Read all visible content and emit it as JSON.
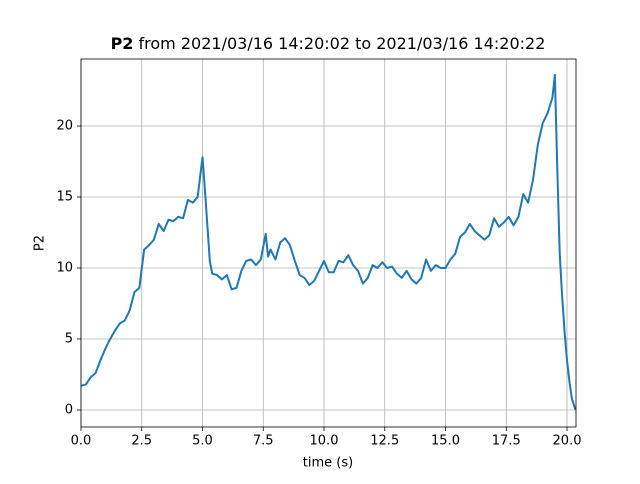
{
  "chart_data": {
    "type": "line",
    "title_parts": [
      "P2",
      "from 2021/03/16 14:20:02 to 2021/03/16 14:20:22"
    ],
    "x_label": "time (s)",
    "y_label": "P2",
    "xlim": [
      0,
      20.37
    ],
    "ylim": [
      -1.2,
      24.72
    ],
    "xticks": [
      {
        "value": 0,
        "label": "0.0"
      },
      2.5,
      {
        "value": 5,
        "label": "5.0"
      },
      7.5,
      {
        "value": 10,
        "label": "10.0"
      },
      12.5,
      {
        "value": 15,
        "label": "15.0"
      },
      17.5,
      {
        "value": 20,
        "label": "20.0"
      }
    ],
    "yticks": [
      0,
      5,
      10,
      15,
      20
    ],
    "grid": true,
    "x": [
      0,
      0.2,
      0.4,
      0.6,
      0.8,
      1.0,
      1.2,
      1.4,
      1.6,
      1.8,
      2.0,
      2.2,
      2.4,
      2.6,
      2.8,
      3.0,
      3.2,
      3.4,
      3.6,
      3.8,
      4.0,
      4.2,
      4.4,
      4.6,
      4.8,
      5.0,
      5.1,
      5.2,
      5.3,
      5.4,
      5.6,
      5.8,
      6.0,
      6.2,
      6.4,
      6.6,
      6.8,
      7.0,
      7.2,
      7.4,
      7.6,
      7.7,
      7.8,
      8.0,
      8.2,
      8.4,
      8.6,
      8.8,
      9.0,
      9.2,
      9.4,
      9.6,
      9.8,
      10.0,
      10.2,
      10.4,
      10.6,
      10.8,
      11.0,
      11.2,
      11.4,
      11.6,
      11.8,
      12.0,
      12.2,
      12.4,
      12.6,
      12.8,
      13.0,
      13.2,
      13.4,
      13.6,
      13.8,
      14.0,
      14.2,
      14.4,
      14.6,
      14.8,
      15.0,
      15.2,
      15.4,
      15.6,
      15.8,
      16.0,
      16.2,
      16.4,
      16.6,
      16.8,
      17.0,
      17.2,
      17.4,
      17.6,
      17.8,
      18.0,
      18.2,
      18.4,
      18.6,
      18.8,
      19.0,
      19.2,
      19.4,
      19.5,
      19.6,
      19.7,
      19.8,
      19.9,
      20.0,
      20.1,
      20.2,
      20.35
    ],
    "series": [
      {
        "name": "P2",
        "color": "#1f77b4",
        "values": [
          1.7,
          1.8,
          2.3,
          2.6,
          3.5,
          4.3,
          5.0,
          5.6,
          6.1,
          6.3,
          7.0,
          8.3,
          8.6,
          11.3,
          11.6,
          12.0,
          13.1,
          12.6,
          13.4,
          13.3,
          13.6,
          13.5,
          14.8,
          14.6,
          15.0,
          17.8,
          15.5,
          13.0,
          10.5,
          9.6,
          9.5,
          9.2,
          9.5,
          8.5,
          8.6,
          9.8,
          10.5,
          10.6,
          10.2,
          10.6,
          12.4,
          10.8,
          11.3,
          10.6,
          11.8,
          12.1,
          11.6,
          10.5,
          9.5,
          9.3,
          8.8,
          9.1,
          9.8,
          10.5,
          9.7,
          9.7,
          10.5,
          10.4,
          10.9,
          10.2,
          9.8,
          8.9,
          9.3,
          10.2,
          10.0,
          10.4,
          10.0,
          10.1,
          9.6,
          9.3,
          9.8,
          9.2,
          8.9,
          9.3,
          10.6,
          9.8,
          10.2,
          10.0,
          10.0,
          10.6,
          11.0,
          12.2,
          12.5,
          13.1,
          12.6,
          12.3,
          12.0,
          12.3,
          13.5,
          12.9,
          13.2,
          13.6,
          13.0,
          13.6,
          15.2,
          14.6,
          16.2,
          18.7,
          20.2,
          20.9,
          22.0,
          23.6,
          17.0,
          11.0,
          8.0,
          5.5,
          3.5,
          2.0,
          0.8,
          0.0
        ]
      }
    ]
  }
}
